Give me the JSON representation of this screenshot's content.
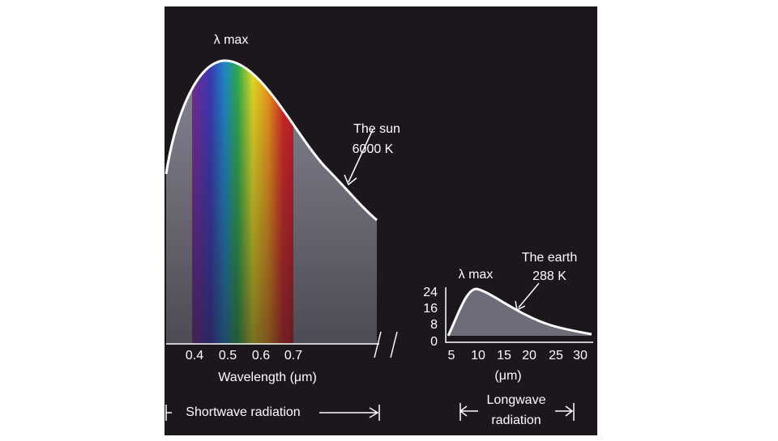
{
  "sun": {
    "peak_label": "λ max",
    "curve_label": [
      "The sun",
      "6000 K"
    ],
    "x_ticks": [
      "0.4",
      "0.5",
      "0.6",
      "0.7"
    ],
    "x_axis_label": "Wavelength (μm)",
    "band_label": "Shortwave radiation"
  },
  "earth": {
    "peak_label": "λ max",
    "curve_label": [
      "The earth",
      "288 K"
    ],
    "y_ticks": [
      "24",
      "16",
      "8",
      "0"
    ],
    "x_ticks": [
      "5",
      "10",
      "15",
      "20",
      "25",
      "30"
    ],
    "x_axis_label": "(μm)",
    "band_label": [
      "Longwave",
      "radiation"
    ]
  }
}
